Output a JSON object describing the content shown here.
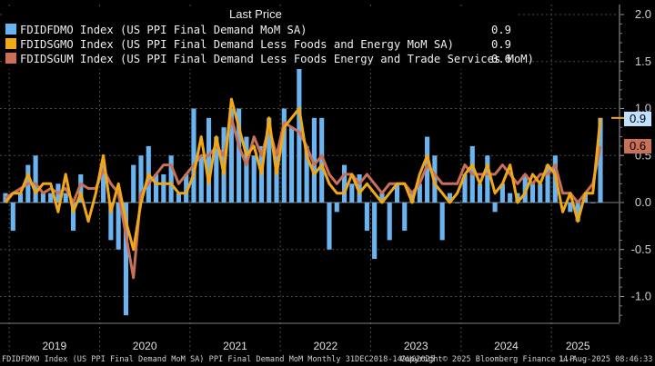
{
  "chart_data": {
    "type": "bar+line",
    "legend_title": "Last Price",
    "legend_position": "top-left",
    "x_labels": [
      "2019",
      "2020",
      "2021",
      "2022",
      "2023",
      "2024",
      "2025"
    ],
    "y_ticks": [
      -1.0,
      -0.5,
      0.0,
      0.5,
      1.0,
      1.5,
      2.0
    ],
    "ylim": [
      -1.25,
      2.05
    ],
    "grid": true,
    "months": [
      "2018-12",
      "2019-01",
      "2019-02",
      "2019-03",
      "2019-04",
      "2019-05",
      "2019-06",
      "2019-07",
      "2019-08",
      "2019-09",
      "2019-10",
      "2019-11",
      "2019-12",
      "2020-01",
      "2020-02",
      "2020-03",
      "2020-04",
      "2020-05",
      "2020-06",
      "2020-07",
      "2020-08",
      "2020-09",
      "2020-10",
      "2020-11",
      "2020-12",
      "2021-01",
      "2021-02",
      "2021-03",
      "2021-04",
      "2021-05",
      "2021-06",
      "2021-07",
      "2021-08",
      "2021-09",
      "2021-10",
      "2021-11",
      "2021-12",
      "2022-01",
      "2022-02",
      "2022-03",
      "2022-04",
      "2022-05",
      "2022-06",
      "2022-07",
      "2022-08",
      "2022-09",
      "2022-10",
      "2022-11",
      "2022-12",
      "2023-01",
      "2023-02",
      "2023-03",
      "2023-04",
      "2023-05",
      "2023-06",
      "2023-07",
      "2023-08",
      "2023-09",
      "2023-10",
      "2023-11",
      "2023-12",
      "2024-01",
      "2024-02",
      "2024-03",
      "2024-04",
      "2024-05",
      "2024-06",
      "2024-07",
      "2024-08",
      "2024-09",
      "2024-10",
      "2024-11",
      "2024-12",
      "2025-01",
      "2025-02",
      "2025-03",
      "2025-04",
      "2025-05",
      "2025-06",
      "2025-07"
    ],
    "series": [
      {
        "name": "FDIDFDMO Index (US PPI Final Demand MoM SA)",
        "type": "bar",
        "color": "#6cb4f0",
        "last": "0.9",
        "values": [
          0.1,
          -0.3,
          0.1,
          0.4,
          0.5,
          0.1,
          0.1,
          0.2,
          0.1,
          -0.3,
          0.3,
          0.0,
          0.0,
          0.4,
          -0.4,
          -0.5,
          -1.2,
          0.4,
          0.5,
          0.6,
          0.3,
          0.3,
          0.5,
          0.1,
          0.3,
          1.0,
          0.5,
          0.9,
          0.7,
          0.8,
          1.0,
          1.0,
          0.7,
          0.5,
          0.6,
          0.9,
          0.5,
          1.0,
          0.8,
          1.6,
          0.6,
          0.9,
          0.9,
          -0.5,
          -0.1,
          0.4,
          0.2,
          0.3,
          -0.3,
          -0.6,
          0.1,
          -0.4,
          0.2,
          -0.3,
          0.1,
          0.2,
          0.7,
          0.5,
          -0.4,
          0.1,
          0.0,
          0.3,
          0.6,
          0.2,
          0.5,
          -0.1,
          0.2,
          0.1,
          0.1,
          0.3,
          0.2,
          0.2,
          0.4,
          0.5,
          0.0,
          -0.1,
          -0.2,
          0.1,
          0.0,
          0.9
        ]
      },
      {
        "name": "FDIDSGMO Index (US PPI Final Demand Less Foods and Energy MoM SA)",
        "type": "line",
        "color": "#f0a818",
        "last": "0.9",
        "values": [
          0.0,
          0.1,
          0.1,
          0.3,
          0.1,
          0.2,
          0.2,
          -0.1,
          0.3,
          -0.1,
          0.1,
          -0.2,
          0.1,
          0.5,
          -0.1,
          0.2,
          -0.2,
          -0.5,
          0.0,
          0.3,
          0.2,
          0.2,
          0.2,
          0.1,
          0.1,
          0.3,
          0.7,
          0.2,
          0.7,
          0.3,
          1.1,
          0.8,
          0.5,
          0.6,
          0.3,
          0.9,
          0.3,
          0.8,
          0.9,
          1.0,
          0.5,
          0.3,
          0.4,
          0.2,
          0.1,
          0.1,
          0.3,
          0.1,
          0.2,
          0.1,
          0.0,
          0.1,
          0.2,
          0.2,
          0.0,
          0.3,
          0.5,
          0.2,
          0.1,
          0.0,
          0.1,
          0.3,
          0.4,
          0.2,
          0.4,
          0.1,
          0.2,
          0.4,
          0.0,
          0.1,
          0.3,
          0.2,
          0.4,
          0.3,
          -0.1,
          0.1,
          -0.2,
          0.1,
          0.1,
          0.9
        ]
      },
      {
        "name": "FDIDSGUM Index (US PPI Final Demand Less Foods Energy and Trade Services MoM)",
        "type": "line",
        "color": "#c87058",
        "last": "0.6",
        "values": [
          0.05,
          0.1,
          0.15,
          0.2,
          0.2,
          0.1,
          0.15,
          0.1,
          0.15,
          0.0,
          0.2,
          0.15,
          0.15,
          0.35,
          0.2,
          0.1,
          -0.35,
          -0.8,
          0.1,
          0.2,
          0.3,
          0.4,
          0.4,
          0.2,
          0.3,
          0.4,
          0.5,
          0.5,
          0.6,
          0.5,
          0.9,
          0.6,
          0.4,
          0.7,
          0.5,
          0.8,
          0.5,
          0.85,
          0.8,
          0.75,
          0.6,
          0.4,
          0.5,
          0.3,
          0.2,
          0.3,
          0.3,
          0.2,
          0.3,
          0.2,
          0.1,
          0.2,
          0.2,
          0.2,
          0.1,
          0.2,
          0.4,
          0.3,
          0.2,
          0.2,
          0.2,
          0.4,
          0.3,
          0.3,
          0.3,
          0.3,
          0.4,
          0.3,
          0.2,
          0.3,
          0.2,
          0.3,
          0.3,
          0.4,
          0.1,
          0.1,
          0.0,
          0.1,
          0.2,
          0.6
        ]
      }
    ]
  },
  "footer": {
    "left": "FDIDFDMO Index (US PPI Final Demand MoM SA) PPI Final Demand MoM  Monthly 31DEC2018-14AUG2025",
    "center": "Copyright© 2025 Bloomberg Finance L.P.",
    "right": "14-Aug-2025 08:46:33"
  }
}
